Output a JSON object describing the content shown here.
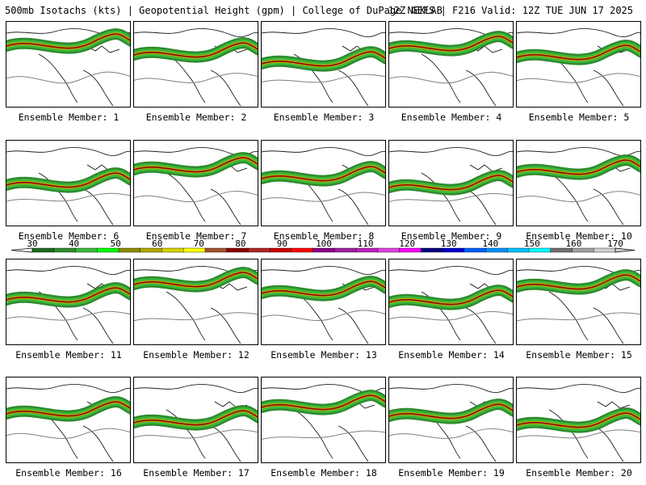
{
  "header": {
    "left": "500mb Isotachs (kts) | Geopotential Height (gpm) | College of DuPage NEXLAB",
    "right": "12Z GEFS | F216 Valid: 12Z TUE JUN 17 2025"
  },
  "members": [
    "Ensemble Member: 1",
    "Ensemble Member: 2",
    "Ensemble Member: 3",
    "Ensemble Member: 4",
    "Ensemble Member: 5",
    "Ensemble Member: 6",
    "Ensemble Member: 7",
    "Ensemble Member: 8",
    "Ensemble Member: 9",
    "Ensemble Member: 10",
    "Ensemble Member: 11",
    "Ensemble Member: 12",
    "Ensemble Member: 13",
    "Ensemble Member: 14",
    "Ensemble Member: 15",
    "Ensemble Member: 16",
    "Ensemble Member: 17",
    "Ensemble Member: 18",
    "Ensemble Member: 19",
    "Ensemble Member: 20"
  ],
  "colorbar": {
    "ticks_top": [
      "30",
      "50",
      "70",
      "90",
      "110",
      "130",
      "150",
      "170"
    ],
    "ticks_bottom": [
      "40",
      "60",
      "80",
      "100",
      "120",
      "140",
      "160"
    ],
    "colors": [
      "#1e6b1e",
      "#2e8b2e",
      "#3cb83c",
      "#00ff00",
      "#8b8b00",
      "#b5a800",
      "#d4d400",
      "#ffff00",
      "#a0522d",
      "#8b0000",
      "#b22222",
      "#cc0000",
      "#ff0000",
      "#8b008b",
      "#a020a0",
      "#c020c0",
      "#e040e0",
      "#ff00ff",
      "#000080",
      "#0000cd",
      "#0060ff",
      "#0090ff",
      "#00c0ff",
      "#00ffff",
      "#707070",
      "#a0a0a0",
      "#d0d0d0"
    ]
  }
}
